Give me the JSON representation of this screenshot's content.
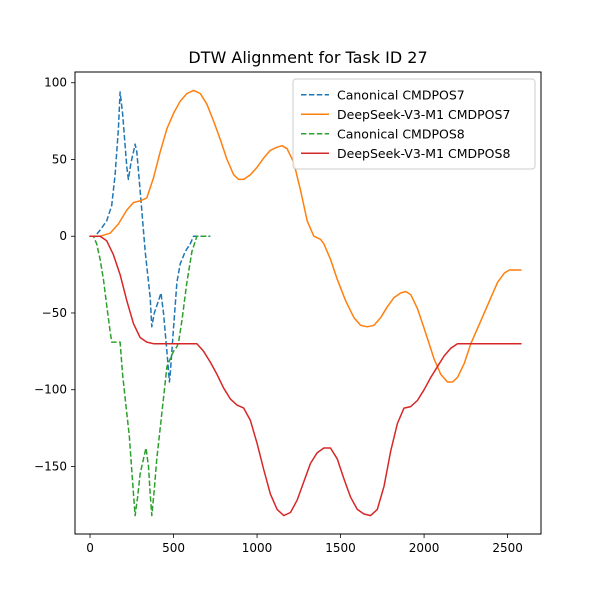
{
  "chart_data": {
    "type": "line",
    "title": "DTW Alignment for Task ID 27",
    "xlabel": "",
    "ylabel": "",
    "xlim": [
      -90,
      2700
    ],
    "ylim": [
      -194,
      107
    ],
    "xticks": [
      0,
      500,
      1000,
      1500,
      2000,
      2500
    ],
    "yticks": [
      -150,
      -100,
      -50,
      0,
      50,
      100
    ],
    "grid": false,
    "legend_position": "top-right",
    "series": [
      {
        "name": "Canonical CMDPOS7",
        "color": "#1f77b4",
        "style": "dashed",
        "points": [
          [
            0,
            0
          ],
          [
            30,
            0
          ],
          [
            60,
            4
          ],
          [
            100,
            10
          ],
          [
            130,
            20
          ],
          [
            150,
            40
          ],
          [
            170,
            70
          ],
          [
            180,
            94
          ],
          [
            195,
            80
          ],
          [
            220,
            45
          ],
          [
            230,
            37
          ],
          [
            245,
            48
          ],
          [
            260,
            55
          ],
          [
            270,
            60
          ],
          [
            280,
            55
          ],
          [
            300,
            30
          ],
          [
            330,
            -10
          ],
          [
            360,
            -40
          ],
          [
            370,
            -59
          ],
          [
            385,
            -50
          ],
          [
            410,
            -42
          ],
          [
            425,
            -37
          ],
          [
            440,
            -50
          ],
          [
            460,
            -75
          ],
          [
            475,
            -95
          ],
          [
            480,
            -90
          ],
          [
            500,
            -60
          ],
          [
            520,
            -30
          ],
          [
            540,
            -18
          ],
          [
            570,
            -10
          ],
          [
            600,
            -5
          ],
          [
            620,
            0
          ],
          [
            650,
            0
          ],
          [
            700,
            0
          ],
          [
            720,
            0
          ]
        ]
      },
      {
        "name": "DeepSeek-V3-M1 CMDPOS7",
        "color": "#ff7f0e",
        "style": "solid",
        "points": [
          [
            0,
            0
          ],
          [
            60,
            0
          ],
          [
            120,
            2
          ],
          [
            170,
            8
          ],
          [
            220,
            17
          ],
          [
            260,
            22
          ],
          [
            300,
            23
          ],
          [
            340,
            25
          ],
          [
            380,
            38
          ],
          [
            420,
            55
          ],
          [
            460,
            70
          ],
          [
            500,
            80
          ],
          [
            540,
            88
          ],
          [
            580,
            93
          ],
          [
            620,
            95
          ],
          [
            660,
            93
          ],
          [
            700,
            86
          ],
          [
            740,
            75
          ],
          [
            780,
            63
          ],
          [
            820,
            50
          ],
          [
            860,
            40
          ],
          [
            890,
            37
          ],
          [
            920,
            37
          ],
          [
            960,
            40
          ],
          [
            1000,
            45
          ],
          [
            1040,
            51
          ],
          [
            1080,
            56
          ],
          [
            1120,
            58
          ],
          [
            1150,
            59
          ],
          [
            1180,
            57
          ],
          [
            1220,
            48
          ],
          [
            1260,
            30
          ],
          [
            1300,
            10
          ],
          [
            1340,
            0
          ],
          [
            1380,
            -2
          ],
          [
            1400,
            -5
          ],
          [
            1440,
            -15
          ],
          [
            1480,
            -28
          ],
          [
            1530,
            -42
          ],
          [
            1580,
            -53
          ],
          [
            1620,
            -58
          ],
          [
            1660,
            -59
          ],
          [
            1700,
            -58
          ],
          [
            1740,
            -53
          ],
          [
            1780,
            -46
          ],
          [
            1820,
            -40
          ],
          [
            1860,
            -37
          ],
          [
            1890,
            -36
          ],
          [
            1920,
            -38
          ],
          [
            1960,
            -47
          ],
          [
            2000,
            -60
          ],
          [
            2060,
            -80
          ],
          [
            2100,
            -90
          ],
          [
            2140,
            -95
          ],
          [
            2170,
            -95
          ],
          [
            2200,
            -92
          ],
          [
            2240,
            -83
          ],
          [
            2280,
            -70
          ],
          [
            2340,
            -55
          ],
          [
            2400,
            -40
          ],
          [
            2440,
            -30
          ],
          [
            2480,
            -24
          ],
          [
            2510,
            -22
          ],
          [
            2580,
            -22
          ]
        ]
      },
      {
        "name": "Canonical CMDPOS8",
        "color": "#2ca02c",
        "style": "dashed",
        "points": [
          [
            0,
            0
          ],
          [
            20,
            0
          ],
          [
            40,
            -5
          ],
          [
            60,
            -15
          ],
          [
            80,
            -28
          ],
          [
            100,
            -45
          ],
          [
            120,
            -62
          ],
          [
            130,
            -69
          ],
          [
            180,
            -69
          ],
          [
            195,
            -90
          ],
          [
            215,
            -110
          ],
          [
            235,
            -130
          ],
          [
            255,
            -160
          ],
          [
            270,
            -182
          ],
          [
            285,
            -170
          ],
          [
            300,
            -155
          ],
          [
            320,
            -145
          ],
          [
            335,
            -138
          ],
          [
            350,
            -150
          ],
          [
            360,
            -168
          ],
          [
            370,
            -182
          ],
          [
            385,
            -165
          ],
          [
            400,
            -145
          ],
          [
            430,
            -115
          ],
          [
            460,
            -85
          ],
          [
            500,
            -75
          ],
          [
            520,
            -72
          ],
          [
            530,
            -69
          ],
          [
            550,
            -55
          ],
          [
            580,
            -30
          ],
          [
            610,
            -10
          ],
          [
            640,
            0
          ],
          [
            720,
            0
          ]
        ]
      },
      {
        "name": "DeepSeek-V3-M1 CMDPOS8",
        "color": "#d62728",
        "style": "solid",
        "points": [
          [
            0,
            0
          ],
          [
            60,
            0
          ],
          [
            100,
            -3
          ],
          [
            140,
            -12
          ],
          [
            180,
            -25
          ],
          [
            220,
            -42
          ],
          [
            260,
            -57
          ],
          [
            300,
            -66
          ],
          [
            340,
            -69
          ],
          [
            380,
            -70
          ],
          [
            640,
            -70
          ],
          [
            680,
            -75
          ],
          [
            720,
            -82
          ],
          [
            760,
            -90
          ],
          [
            800,
            -99
          ],
          [
            840,
            -106
          ],
          [
            880,
            -110
          ],
          [
            900,
            -111
          ],
          [
            920,
            -112
          ],
          [
            960,
            -120
          ],
          [
            1000,
            -135
          ],
          [
            1040,
            -152
          ],
          [
            1080,
            -168
          ],
          [
            1120,
            -178
          ],
          [
            1160,
            -182
          ],
          [
            1200,
            -180
          ],
          [
            1240,
            -172
          ],
          [
            1280,
            -160
          ],
          [
            1320,
            -148
          ],
          [
            1360,
            -141
          ],
          [
            1400,
            -138
          ],
          [
            1440,
            -138
          ],
          [
            1480,
            -145
          ],
          [
            1520,
            -158
          ],
          [
            1560,
            -170
          ],
          [
            1600,
            -178
          ],
          [
            1640,
            -181
          ],
          [
            1680,
            -182
          ],
          [
            1720,
            -178
          ],
          [
            1760,
            -163
          ],
          [
            1800,
            -140
          ],
          [
            1840,
            -122
          ],
          [
            1880,
            -112
          ],
          [
            1920,
            -111
          ],
          [
            1960,
            -107
          ],
          [
            2000,
            -100
          ],
          [
            2040,
            -92
          ],
          [
            2080,
            -85
          ],
          [
            2120,
            -78
          ],
          [
            2160,
            -73
          ],
          [
            2200,
            -70
          ],
          [
            2580,
            -70
          ]
        ]
      }
    ]
  }
}
